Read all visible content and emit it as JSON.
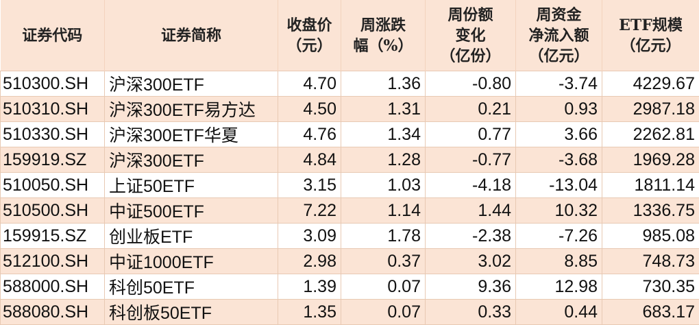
{
  "colors": {
    "header_bg": "#fbe4d5",
    "alt_row_bg": "#fbe4d5"
  },
  "headers": [
    [
      "证券代码"
    ],
    [
      "证券简称"
    ],
    [
      "收盘价",
      "（元）"
    ],
    [
      "周涨跌",
      "幅（%）"
    ],
    [
      "周份额",
      "变化",
      "（亿份）"
    ],
    [
      "周资金",
      "净流入额",
      "（亿元）"
    ],
    [
      "ETF规模",
      "（亿元）"
    ]
  ],
  "rows": [
    [
      "510300.SH",
      "沪深300ETF",
      "4.70",
      "1.36",
      "-0.80",
      "-3.74",
      "4229.67"
    ],
    [
      "510310.SH",
      "沪深300ETF易方达",
      "4.50",
      "1.31",
      "0.21",
      "0.93",
      "2987.18"
    ],
    [
      "510330.SH",
      "沪深300ETF华夏",
      "4.76",
      "1.34",
      "0.77",
      "3.66",
      "2262.81"
    ],
    [
      "159919.SZ",
      "沪深300ETF",
      "4.84",
      "1.28",
      "-0.77",
      "-3.68",
      "1969.28"
    ],
    [
      "510050.SH",
      "上证50ETF",
      "3.15",
      "1.03",
      "-4.18",
      "-13.04",
      "1811.14"
    ],
    [
      "510500.SH",
      "中证500ETF",
      "7.22",
      "1.14",
      "1.44",
      "10.32",
      "1336.75"
    ],
    [
      "159915.SZ",
      "创业板ETF",
      "3.09",
      "1.78",
      "-2.38",
      "-7.26",
      "985.08"
    ],
    [
      "512100.SH",
      "中证1000ETF",
      "2.98",
      "0.37",
      "3.02",
      "8.85",
      "748.73"
    ],
    [
      "588000.SH",
      "科创50ETF",
      "1.39",
      "0.07",
      "9.36",
      "12.98",
      "730.35"
    ],
    [
      "588080.SH",
      "科创板50ETF",
      "1.35",
      "0.07",
      "0.33",
      "0.44",
      "683.17"
    ]
  ]
}
